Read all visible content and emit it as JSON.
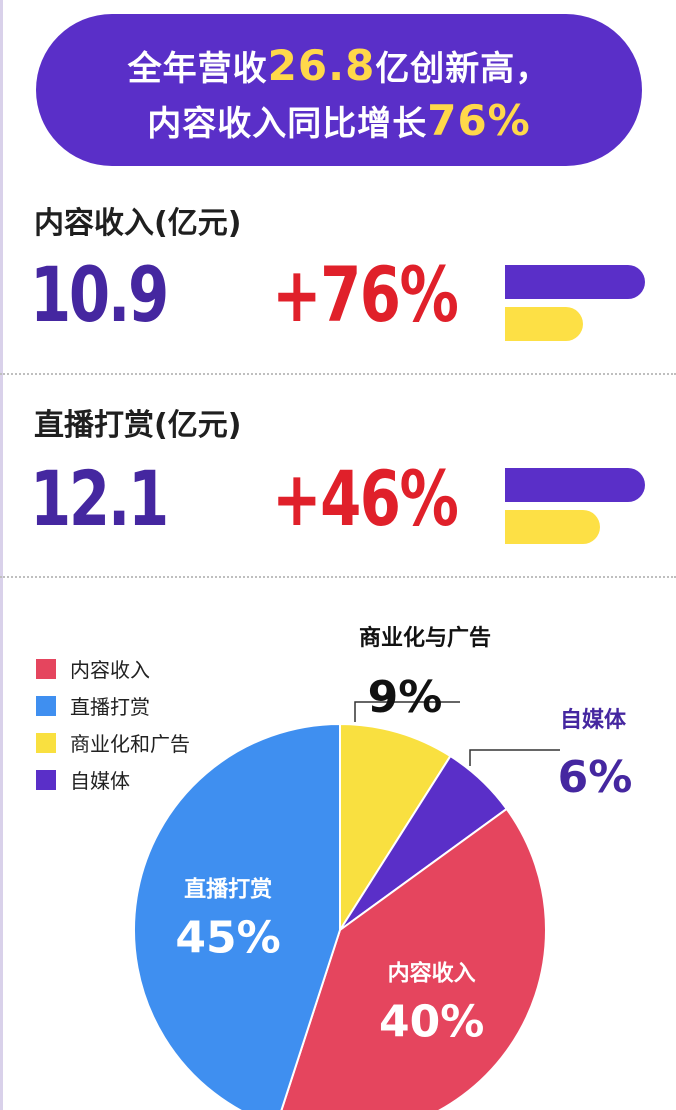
{
  "banner": {
    "line1_prefix": "全年营收",
    "line1_highlight": "26.8",
    "line1_suffix": "亿创新高，",
    "line2_prefix": "内容收入同比增长",
    "line2_highlight": "76%"
  },
  "metrics": [
    {
      "title": "内容收入(亿元)",
      "value": "10.9",
      "growth": "+76%",
      "bar_yellow_fraction": 0.56
    },
    {
      "title": "直播打赏(亿元)",
      "value": "12.1",
      "growth": "+46%",
      "bar_yellow_fraction": 0.68
    }
  ],
  "chart_data": {
    "type": "pie",
    "legend": [
      "内容收入",
      "直播打赏",
      "商业化和广告",
      "自媒体"
    ],
    "legend_placement": "top-left",
    "slices": [
      {
        "label": "内容收入",
        "value": 40,
        "display": "40%",
        "color": "#e5455e"
      },
      {
        "label": "直播打赏",
        "value": 45,
        "display": "45%",
        "color": "#3f8ff0"
      },
      {
        "label": "商业化与广告",
        "value": 9,
        "display": "9%",
        "color": "#f9e040"
      },
      {
        "label": "自媒体",
        "value": 6,
        "display": "6%",
        "color": "#5a2fc8"
      }
    ]
  },
  "colors": {
    "purple": "#5a2fc8",
    "yellow_highlight": "#ffd84a",
    "red": "#e0202a",
    "number_purple": "#4527a0"
  }
}
